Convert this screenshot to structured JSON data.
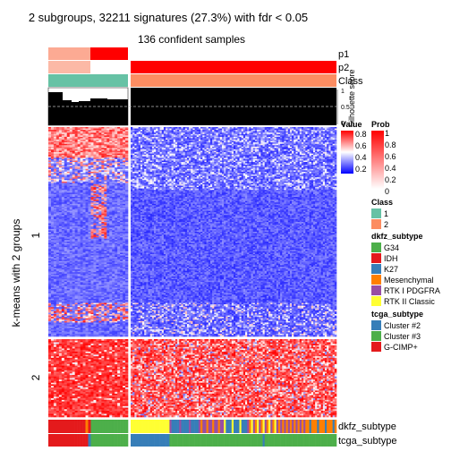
{
  "title": "2 subgroups, 32211 signatures (27.3%) with fdr < 0.05",
  "subtitle": "136 confident samples",
  "ylabel": "k-means with 2 groups",
  "row_groups": [
    "1",
    "2"
  ],
  "track_labels": {
    "p1": "p1",
    "p2": "p2",
    "class": "Class",
    "silhouette": "Silhouette score",
    "dkfz": "dkfz_subtype",
    "tcga": "tcga_subtype"
  },
  "silhouette_ticks": [
    "1",
    "0.5",
    "0"
  ],
  "colors": {
    "class1": "#66C2A5",
    "class2": "#FC8D62",
    "prob_high": "#FF0000",
    "value_high": "#FF0000",
    "value_mid": "#FFFFFF",
    "value_low": "#0000FF"
  },
  "legends": {
    "value": {
      "title": "Value",
      "ticks": [
        "0.8",
        "0.6",
        "0.4",
        "0.2"
      ]
    },
    "prob": {
      "title": "Prob",
      "ticks": [
        "1",
        "0.8",
        "0.6",
        "0.4",
        "0.2",
        "0"
      ]
    },
    "class": {
      "title": "Class",
      "items": [
        {
          "label": "1",
          "color": "#66C2A5"
        },
        {
          "label": "2",
          "color": "#FC8D62"
        }
      ]
    },
    "dkfz": {
      "title": "dkfz_subtype",
      "items": [
        {
          "label": "G34",
          "color": "#4DAF4A"
        },
        {
          "label": "IDH",
          "color": "#E41A1C"
        },
        {
          "label": "K27",
          "color": "#377EB8"
        },
        {
          "label": "Mesenchymal",
          "color": "#FF7F00"
        },
        {
          "label": "RTK I PDGFRA",
          "color": "#984EA3"
        },
        {
          "label": "RTK II Classic",
          "color": "#FFFF33"
        }
      ]
    },
    "tcga": {
      "title": "tcga_subtype",
      "items": [
        {
          "label": "Cluster #2",
          "color": "#377EB8"
        },
        {
          "label": "Cluster #3",
          "color": "#4DAF4A"
        },
        {
          "label": "G-CIMP+",
          "color": "#E41A1C"
        }
      ]
    }
  },
  "chart_data": {
    "type": "heatmap",
    "n_samples": 136,
    "class_sizes": [
      30,
      106
    ],
    "row_group_fractions": [
      0.76,
      0.24
    ],
    "silhouette_threshold": 0.5,
    "value_range": [
      0,
      1
    ],
    "prob_range": [
      0,
      1
    ]
  }
}
